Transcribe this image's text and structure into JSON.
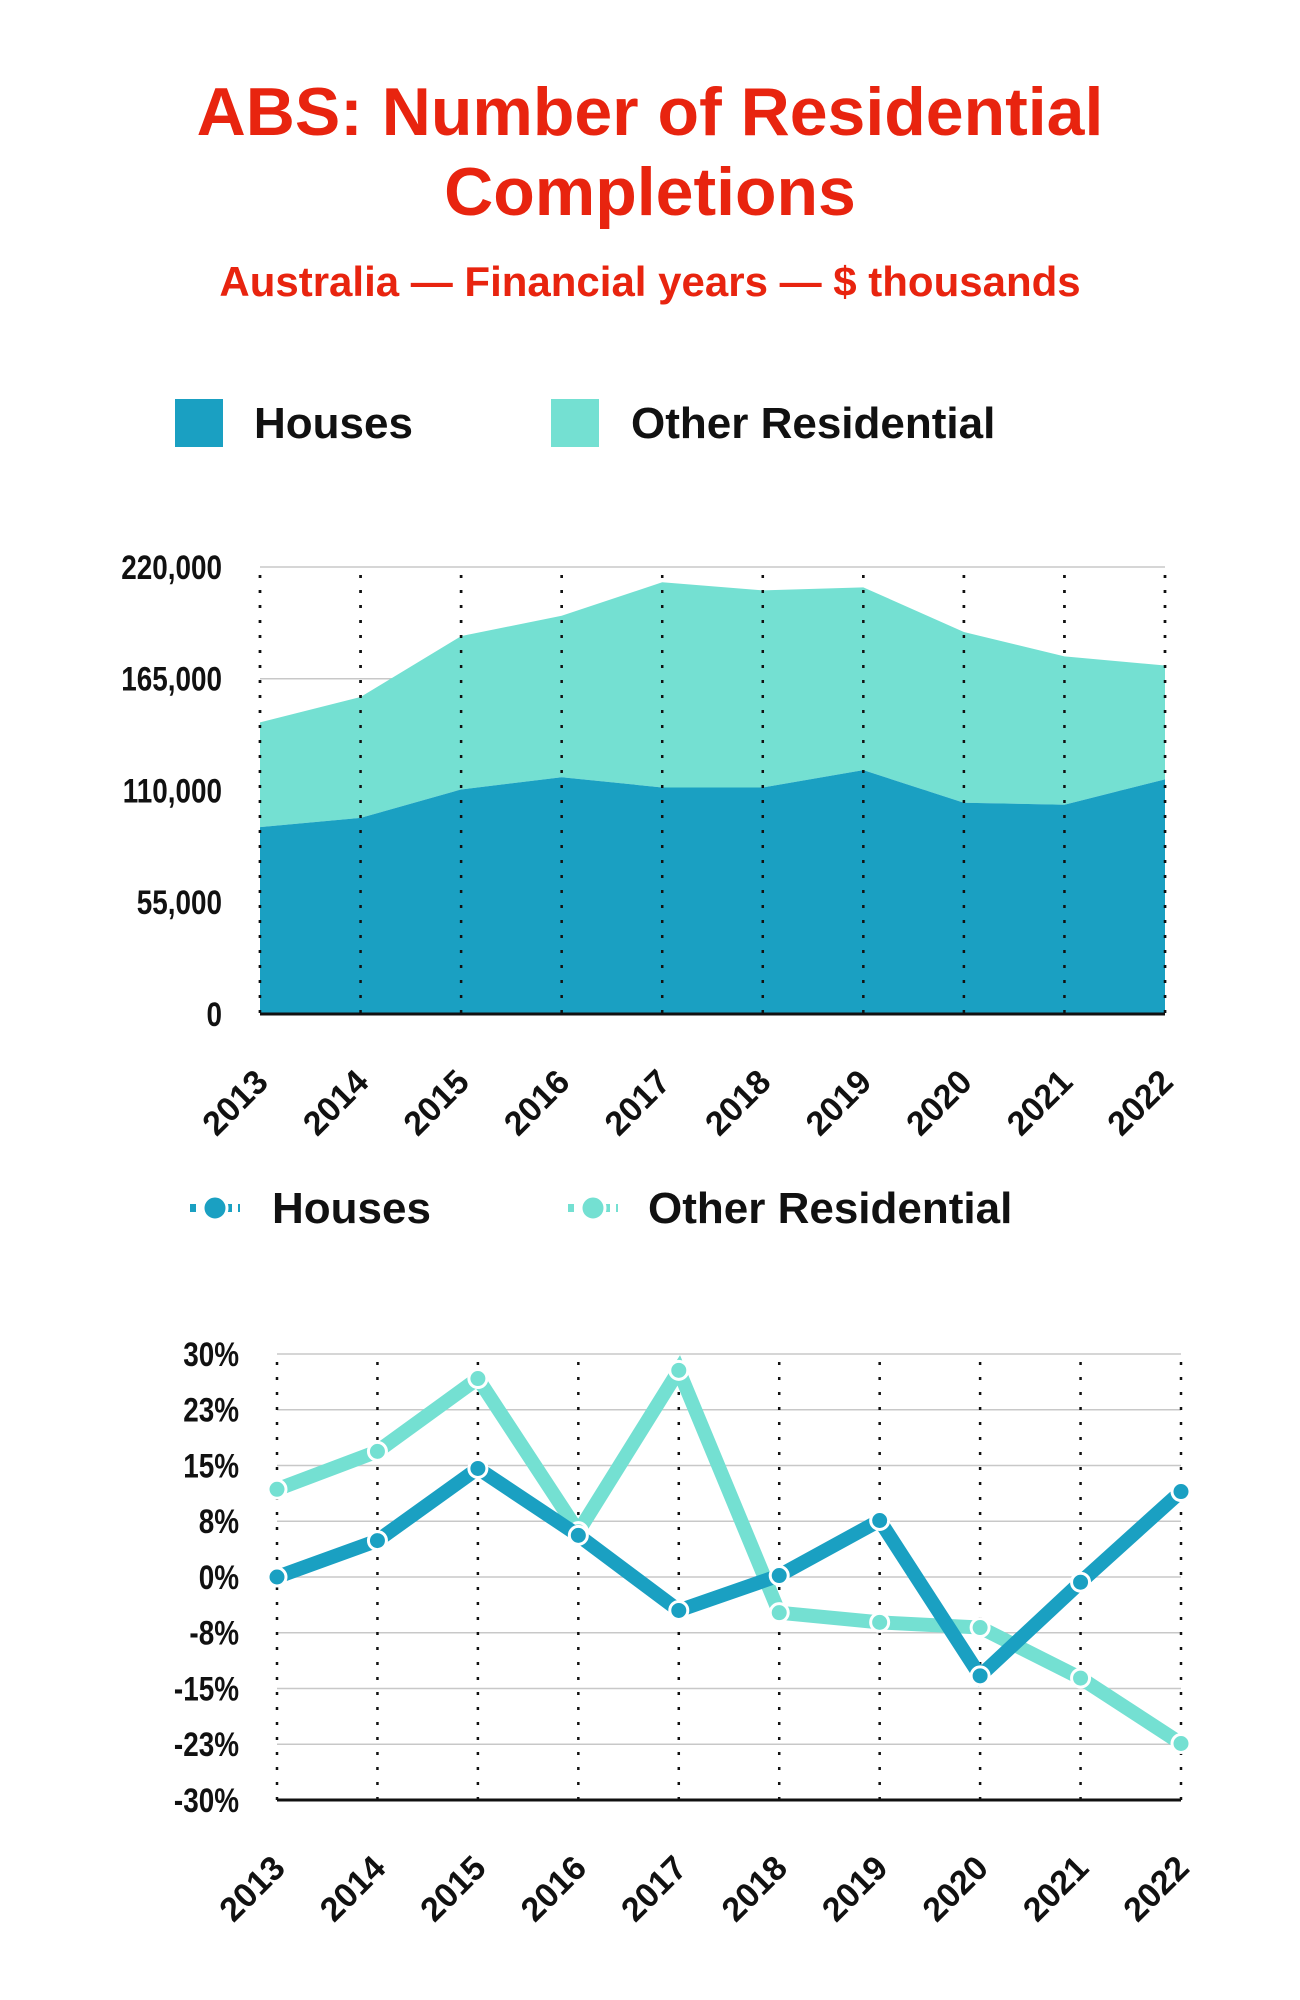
{
  "title": "ABS: Number of Residential Completions",
  "subtitle": "Australia — Financial years — $ thousands",
  "colors": {
    "title": "#e8240f",
    "houses": "#1aa0c2",
    "other": "#74e0d2"
  },
  "chart_data": [
    {
      "type": "area",
      "stacked": true,
      "legend": [
        "Houses",
        "Other Residential"
      ],
      "legend_position": "top",
      "categories": [
        "2013",
        "2014",
        "2015",
        "2016",
        "2017",
        "2018",
        "2019",
        "2020",
        "2021",
        "2022"
      ],
      "series": [
        {
          "name": "Houses",
          "values": [
            92000,
            96500,
            110500,
            116500,
            111500,
            111500,
            120000,
            104000,
            103000,
            115500
          ]
        },
        {
          "name": "Other Residential",
          "values": [
            51500,
            59500,
            75500,
            79500,
            101000,
            97000,
            90000,
            84000,
            73000,
            56000
          ]
        }
      ],
      "yticks": [
        "0",
        "55,000",
        "110,000",
        "165,000",
        "220,000"
      ],
      "ylim": [
        0,
        220000
      ],
      "grid": "horizontal solid, vertical dotted"
    },
    {
      "type": "line",
      "legend": [
        "Houses",
        "Other Residential"
      ],
      "legend_position": "top",
      "categories": [
        "2013",
        "2014",
        "2015",
        "2016",
        "2017",
        "2018",
        "2019",
        "2020",
        "2021",
        "2022"
      ],
      "series": [
        {
          "name": "Houses",
          "values": [
            0.0,
            4.9,
            14.6,
            5.6,
            -4.5,
            0.2,
            7.6,
            -13.3,
            -0.7,
            11.5
          ]
        },
        {
          "name": "Other Residential",
          "values": [
            11.8,
            16.9,
            26.7,
            6.1,
            27.8,
            -4.8,
            -6.1,
            -6.8,
            -13.6,
            -22.4
          ]
        }
      ],
      "yticks": [
        "-30%",
        "-23%",
        "-15%",
        "-8%",
        "0%",
        "8%",
        "15%",
        "23%",
        "30%"
      ],
      "ylim": [
        -30,
        30
      ],
      "grid": "horizontal solid, vertical dotted"
    }
  ]
}
